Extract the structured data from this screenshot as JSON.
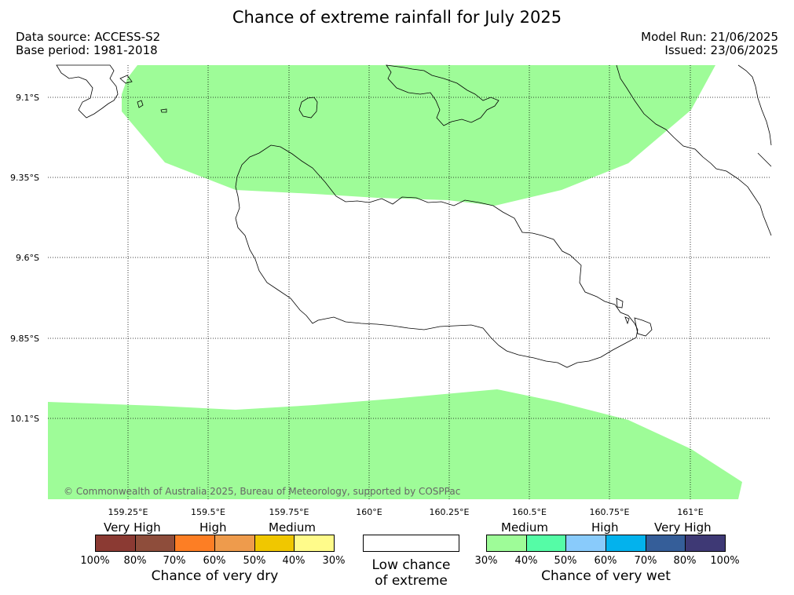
{
  "title": "Chance of extreme rainfall for July 2025",
  "data_source": "Data source: ACCESS-S2",
  "base_period": "Base period: 1981-2018",
  "model_run": "Model Run: 21/06/2025",
  "issued": "Issued: 23/06/2025",
  "copyright": "© Commonwealth of Australia 2025, Bureau of Meteorology, supported by COSPPac",
  "axes": {
    "lat_labels": [
      "9.1°S",
      "9.35°S",
      "9.6°S",
      "9.85°S",
      "10.1°S"
    ],
    "lon_labels": [
      "159.25°E",
      "159.5°E",
      "159.75°E",
      "160°E",
      "160.25°E",
      "160.5°E",
      "160.75°E",
      "161°E"
    ]
  },
  "map_fill_color": "#9efc98",
  "legend": {
    "dry": {
      "headings": [
        "Very High",
        "High",
        "Medium"
      ],
      "colors": [
        "#8b3a33",
        "#8e4d3b",
        "#fd7e24",
        "#ee9b4c",
        "#f0c700",
        "#fffb8a"
      ],
      "ticks": [
        "100%",
        "80%",
        "70%",
        "60%",
        "50%",
        "40%",
        "30%"
      ],
      "caption": "Chance of very dry"
    },
    "low": {
      "caption_line1": "Low chance",
      "caption_line2": "of extreme"
    },
    "wet": {
      "headings": [
        "Medium",
        "High",
        "Very High"
      ],
      "colors": [
        "#9efc98",
        "#55fca6",
        "#89cbfb",
        "#03b2ed",
        "#355e99",
        "#3e3975"
      ],
      "ticks": [
        "30%",
        "40%",
        "50%",
        "60%",
        "70%",
        "80%",
        "100%"
      ],
      "caption": "Chance of very wet"
    }
  }
}
